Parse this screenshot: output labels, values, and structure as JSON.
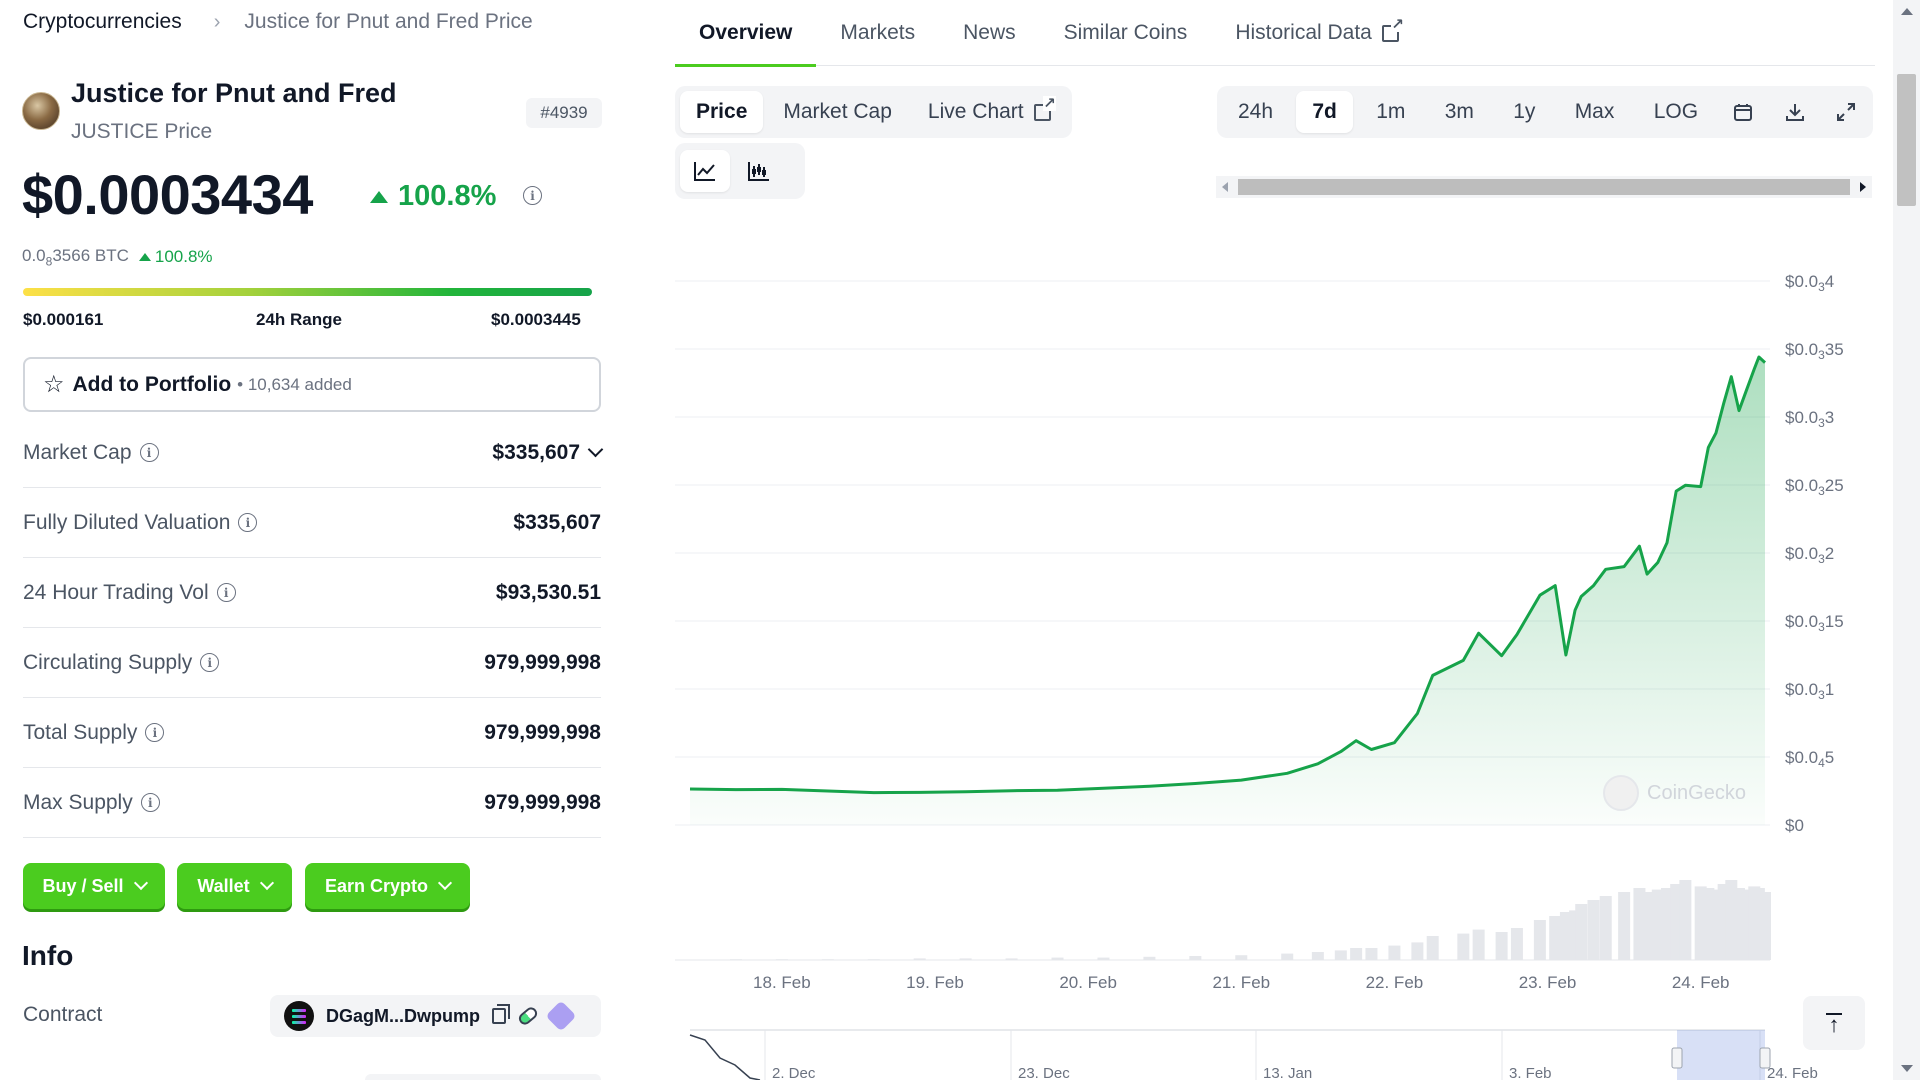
{
  "breadcrumb": {
    "root": "Cryptocurrencies",
    "current": "Justice for Pnut and Fred Price"
  },
  "coin": {
    "name": "Justice for Pnut and Fred",
    "subtitle": "JUSTICE Price",
    "rank": "#4939",
    "price": "$0.0003434",
    "change_24h": "100.8%",
    "btc_price_prefix": "0.0",
    "btc_price_sub": "8",
    "btc_price_suffix": "3566 BTC",
    "btc_change": "100.8%",
    "range": {
      "low": "$0.000161",
      "label": "24h Range",
      "high": "$0.0003445",
      "position": 0.99
    }
  },
  "portfolio": {
    "label": "Add to Portfolio",
    "count": "• 10,634 added"
  },
  "stats": [
    {
      "label": "Market Cap",
      "value": "$335,607",
      "expandable": true
    },
    {
      "label": "Fully Diluted Valuation",
      "value": "$335,607"
    },
    {
      "label": "24 Hour Trading Vol",
      "value": "$93,530.51"
    },
    {
      "label": "Circulating Supply",
      "value": "979,999,998"
    },
    {
      "label": "Total Supply",
      "value": "979,999,998"
    },
    {
      "label": "Max Supply",
      "value": "979,999,998"
    }
  ],
  "actions": {
    "buy_sell": "Buy / Sell",
    "wallet": "Wallet",
    "earn": "Earn Crypto"
  },
  "info": {
    "heading": "Info",
    "contract_label": "Contract",
    "contract_address": "DGagM...Dwpump"
  },
  "tabs": [
    "Overview",
    "Markets",
    "News",
    "Similar Coins",
    "Historical Data"
  ],
  "active_tab": "Overview",
  "chart_controls": {
    "metric": [
      "Price",
      "Market Cap",
      "Live Chart"
    ],
    "active_metric": "Price",
    "ranges": [
      "24h",
      "7d",
      "1m",
      "3m",
      "1y",
      "Max",
      "LOG"
    ],
    "active_range": "7d"
  },
  "watermark": "CoinGecko",
  "colors": {
    "accent": "#4bcc1f",
    "up": "#16a34a",
    "line": "#16a34a"
  },
  "chart_data": {
    "type": "line",
    "title": "",
    "y_ticks": [
      {
        "value": 0,
        "prefix": "$0",
        "sub": "",
        "suffix": ""
      },
      {
        "value": 5e-05,
        "prefix": "$0.0",
        "sub": "4",
        "suffix": "5"
      },
      {
        "value": 0.0001,
        "prefix": "$0.0",
        "sub": "3",
        "suffix": "1"
      },
      {
        "value": 0.00015,
        "prefix": "$0.0",
        "sub": "3",
        "suffix": "15"
      },
      {
        "value": 0.0002,
        "prefix": "$0.0",
        "sub": "3",
        "suffix": "2"
      },
      {
        "value": 0.00025,
        "prefix": "$0.0",
        "sub": "3",
        "suffix": "25"
      },
      {
        "value": 0.0003,
        "prefix": "$0.0",
        "sub": "3",
        "suffix": "3"
      },
      {
        "value": 0.00035,
        "prefix": "$0.0",
        "sub": "3",
        "suffix": "35"
      },
      {
        "value": 0.0004,
        "prefix": "$0.0",
        "sub": "3",
        "suffix": "4"
      }
    ],
    "ylim": [
      0,
      0.0004
    ],
    "x_labels": [
      "18. Feb",
      "19. Feb",
      "20. Feb",
      "21. Feb",
      "22. Feb",
      "23. Feb",
      "24. Feb"
    ],
    "xlim": [
      -0.6,
      6.42
    ],
    "series": [
      {
        "x": [
          -0.6,
          -0.3,
          0,
          0.3,
          0.6,
          0.9,
          1.2,
          1.5,
          1.8,
          2.1,
          2.4,
          2.7,
          3.0,
          3.3,
          3.5,
          3.65,
          3.75,
          3.85,
          4.0,
          4.15,
          4.25,
          4.45,
          4.55,
          4.7,
          4.8,
          4.95,
          5.05,
          5.12,
          5.18,
          5.22,
          5.3,
          5.38,
          5.5,
          5.6,
          5.65,
          5.72,
          5.78,
          5.84,
          5.9,
          6.0,
          6.05,
          6.1,
          6.15,
          6.2,
          6.25,
          6.3,
          6.35,
          6.38,
          6.42
        ],
        "y": [
          2.65e-05,
          2.6e-05,
          2.62e-05,
          2.5e-05,
          2.38e-05,
          2.4e-05,
          2.45e-05,
          2.52e-05,
          2.55e-05,
          2.7e-05,
          2.85e-05,
          3.05e-05,
          3.3e-05,
          3.8e-05,
          4.5e-05,
          5.4e-05,
          6.2e-05,
          5.55e-05,
          6.05e-05,
          8.2e-05,
          0.00011,
          0.000121,
          0.000141,
          0.0001245,
          0.00014,
          0.000169,
          0.000176,
          0.000125,
          0.000158,
          0.000168,
          0.000176,
          0.000188,
          0.00019,
          0.000205,
          0.0001845,
          0.000193,
          0.0002075,
          0.0002455,
          0.0002498,
          0.0002488,
          0.0002775,
          0.0002883,
          0.00031,
          0.0003296,
          0.0003047,
          0.00032,
          0.0003354,
          0.0003441,
          0.00034
        ],
        "volume": [
          0,
          0.01,
          0.01,
          0.01,
          0.01,
          0.02,
          0.02,
          0.02,
          0.03,
          0.03,
          0.04,
          0.05,
          0.06,
          0.08,
          0.1,
          0.12,
          0.15,
          0.15,
          0.18,
          0.22,
          0.3,
          0.33,
          0.38,
          0.35,
          0.4,
          0.5,
          0.55,
          0.6,
          0.62,
          0.7,
          0.75,
          0.8,
          0.85,
          0.9,
          0.85,
          0.88,
          0.9,
          0.95,
          1.0,
          0.92,
          0.9,
          0.88,
          0.95,
          1.0,
          0.9,
          0.88,
          0.92,
          0.9,
          0.85
        ]
      }
    ],
    "navigator_labels": [
      "2. Dec",
      "23. Dec",
      "13. Jan",
      "3. Feb",
      "24. Feb"
    ],
    "grid": true
  }
}
